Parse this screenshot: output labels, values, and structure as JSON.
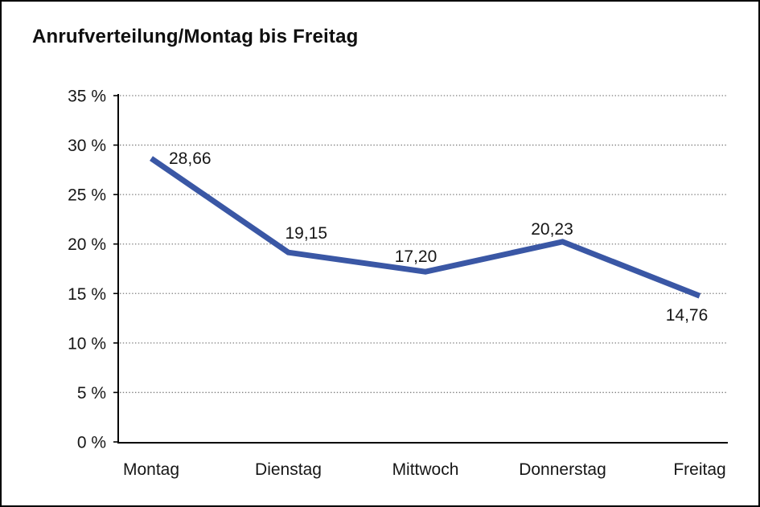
{
  "chart_data": {
    "type": "line",
    "title": "Anrufverteilung/Montag bis Freitag",
    "categories": [
      "Montag",
      "Dienstag",
      "Mittwoch",
      "Donnerstag",
      "Freitag"
    ],
    "series": [
      {
        "name": "Anrufverteilung",
        "values": [
          28.66,
          19.15,
          17.2,
          20.23,
          14.76
        ],
        "value_labels": [
          "28,66",
          "19,15",
          "17,20",
          "20,23",
          "14,76"
        ]
      }
    ],
    "xlabel": "",
    "ylabel": "",
    "ylim": [
      0,
      35
    ],
    "y_step": 5,
    "y_tick_labels": [
      "0 %",
      "5 %",
      "10 %",
      "15 %",
      "20 %",
      "25 %",
      "30 %",
      "35 %"
    ],
    "grid": "horizontal-dotted",
    "legend": "none",
    "colors": {
      "line": "#3A57A5",
      "axis": "#000000",
      "gridline": "#7d7d7d",
      "text": "#161616"
    }
  }
}
